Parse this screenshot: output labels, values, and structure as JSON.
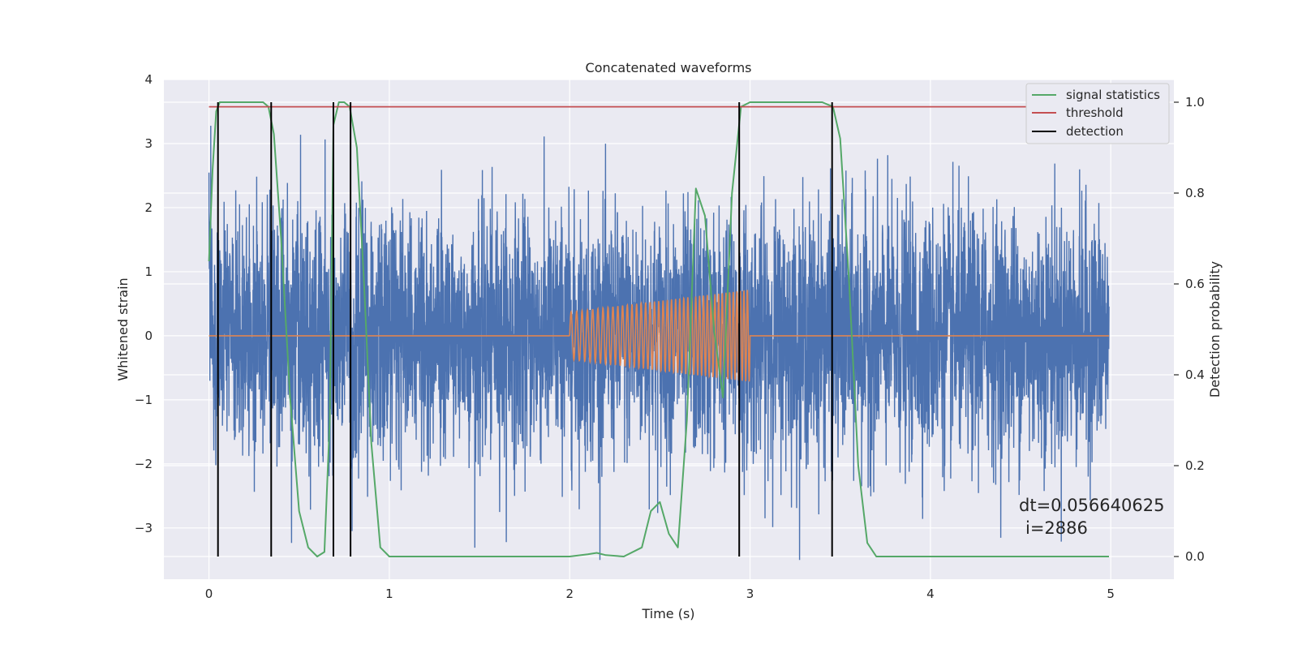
{
  "chart_data": {
    "type": "line",
    "title": "Concatenated waveforms",
    "xlabel": "Time (s)",
    "ylabel": "Whitened strain",
    "y2label": "Detection probability",
    "xlim": [
      -0.25,
      5.35
    ],
    "ylim": [
      -3.8,
      4.0
    ],
    "y2lim": [
      -0.05,
      1.05
    ],
    "xticks": [
      0,
      1,
      2,
      3,
      4,
      5
    ],
    "yticks": [
      -3,
      -2,
      -1,
      0,
      1,
      2,
      3,
      4
    ],
    "y2ticks": [
      0.0,
      0.2,
      0.4,
      0.6,
      0.8,
      1.0
    ],
    "y2ticklabels": [
      "0.0",
      "0.2",
      "0.4",
      "0.6",
      "0.8",
      "1.0"
    ],
    "grid": true,
    "legend_placement": "top-right",
    "colors": {
      "background": "#eaeaf2",
      "grid": "#ffffff",
      "strain": "#4c72b0",
      "template": "#dd8452",
      "signal_statistics": "#55a868",
      "threshold": "#c44e52",
      "detection": "#000000"
    },
    "series": [
      {
        "name": "",
        "axis": "left",
        "kind": "noise",
        "x_range": [
          0,
          4.99
        ],
        "amplitude_envelope": [
          1.5,
          2.3,
          2.8,
          3.6
        ],
        "notes_values": {
          "min": -3.5,
          "max": 3.65
        }
      },
      {
        "name": "",
        "axis": "left",
        "kind": "chirp",
        "x_range": [
          2.0,
          3.0
        ],
        "amplitude_start": 0.37,
        "amplitude_end": 0.72,
        "baseline": 0
      },
      {
        "name": "signal statistics",
        "axis": "right",
        "x": [
          0,
          0.02,
          0.04,
          0.06,
          0.1,
          0.2,
          0.3,
          0.33,
          0.36,
          0.4,
          0.45,
          0.5,
          0.55,
          0.6,
          0.64,
          0.67,
          0.69,
          0.72,
          0.75,
          0.78,
          0.82,
          0.86,
          0.9,
          0.95,
          1.0,
          1.5,
          2.0,
          2.1,
          2.15,
          2.2,
          2.3,
          2.4,
          2.45,
          2.5,
          2.55,
          2.6,
          2.65,
          2.7,
          2.75,
          2.8,
          2.85,
          2.9,
          2.95,
          3.0,
          3.2,
          3.4,
          3.46,
          3.5,
          3.55,
          3.6,
          3.65,
          3.7,
          4.0,
          4.99
        ],
        "values": [
          0.65,
          0.85,
          0.98,
          1.0,
          1.0,
          1.0,
          1.0,
          0.99,
          0.93,
          0.7,
          0.35,
          0.1,
          0.02,
          0.0,
          0.01,
          0.3,
          0.95,
          1.0,
          1.0,
          0.99,
          0.9,
          0.6,
          0.25,
          0.02,
          0.0,
          0.0,
          0.0,
          0.005,
          0.008,
          0.003,
          0.0,
          0.02,
          0.1,
          0.12,
          0.05,
          0.02,
          0.3,
          0.81,
          0.75,
          0.5,
          0.35,
          0.8,
          0.99,
          1.0,
          1.0,
          1.0,
          0.99,
          0.92,
          0.6,
          0.2,
          0.03,
          0.0,
          0.0,
          0.0
        ]
      },
      {
        "name": "threshold",
        "axis": "right",
        "x": [
          0,
          4.99
        ],
        "values": [
          0.99,
          0.99
        ]
      },
      {
        "name": "detection",
        "axis": "right",
        "kind": "vlines",
        "x": [
          0.05,
          0.345,
          0.69,
          0.785,
          2.94,
          3.455
        ],
        "ymin": 0.0,
        "ymax": 1.0
      }
    ],
    "annotations": [
      "dt=0.056640625",
      "i=2886"
    ]
  }
}
